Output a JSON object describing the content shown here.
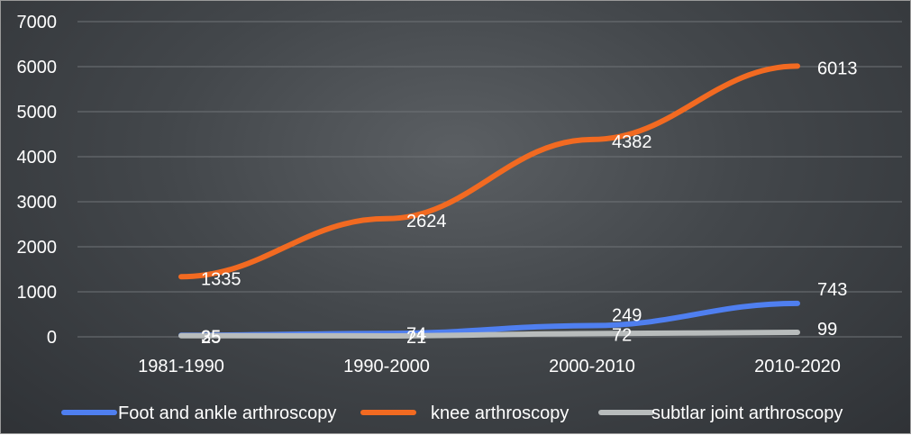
{
  "chart_data": {
    "type": "line",
    "title": "",
    "xlabel": "",
    "ylabel": "",
    "categories": [
      "1981-1990",
      "1990-2000",
      "2000-2010",
      "2010-2020"
    ],
    "ylim": [
      0,
      7000
    ],
    "yticks": [
      0,
      1000,
      2000,
      3000,
      4000,
      5000,
      6000,
      7000
    ],
    "grid": true,
    "legend_position": "bottom",
    "series": [
      {
        "name": "Foot and ankle arthroscopy",
        "color": "#4f7ff0",
        "values": [
          35,
          74,
          249,
          743
        ],
        "labels": [
          "35",
          "74",
          "249",
          "743"
        ]
      },
      {
        "name": "knee arthroscopy",
        "color": "#f26a21",
        "values": [
          1335,
          2624,
          4382,
          6013
        ],
        "labels": [
          "1335",
          "2624",
          "4382",
          "6013"
        ]
      },
      {
        "name": "subtlar joint arthroscopy",
        "color": "#b8bcbc",
        "values": [
          25,
          21,
          72,
          99
        ],
        "labels": [
          "25",
          "21",
          "72",
          "99"
        ]
      }
    ]
  }
}
